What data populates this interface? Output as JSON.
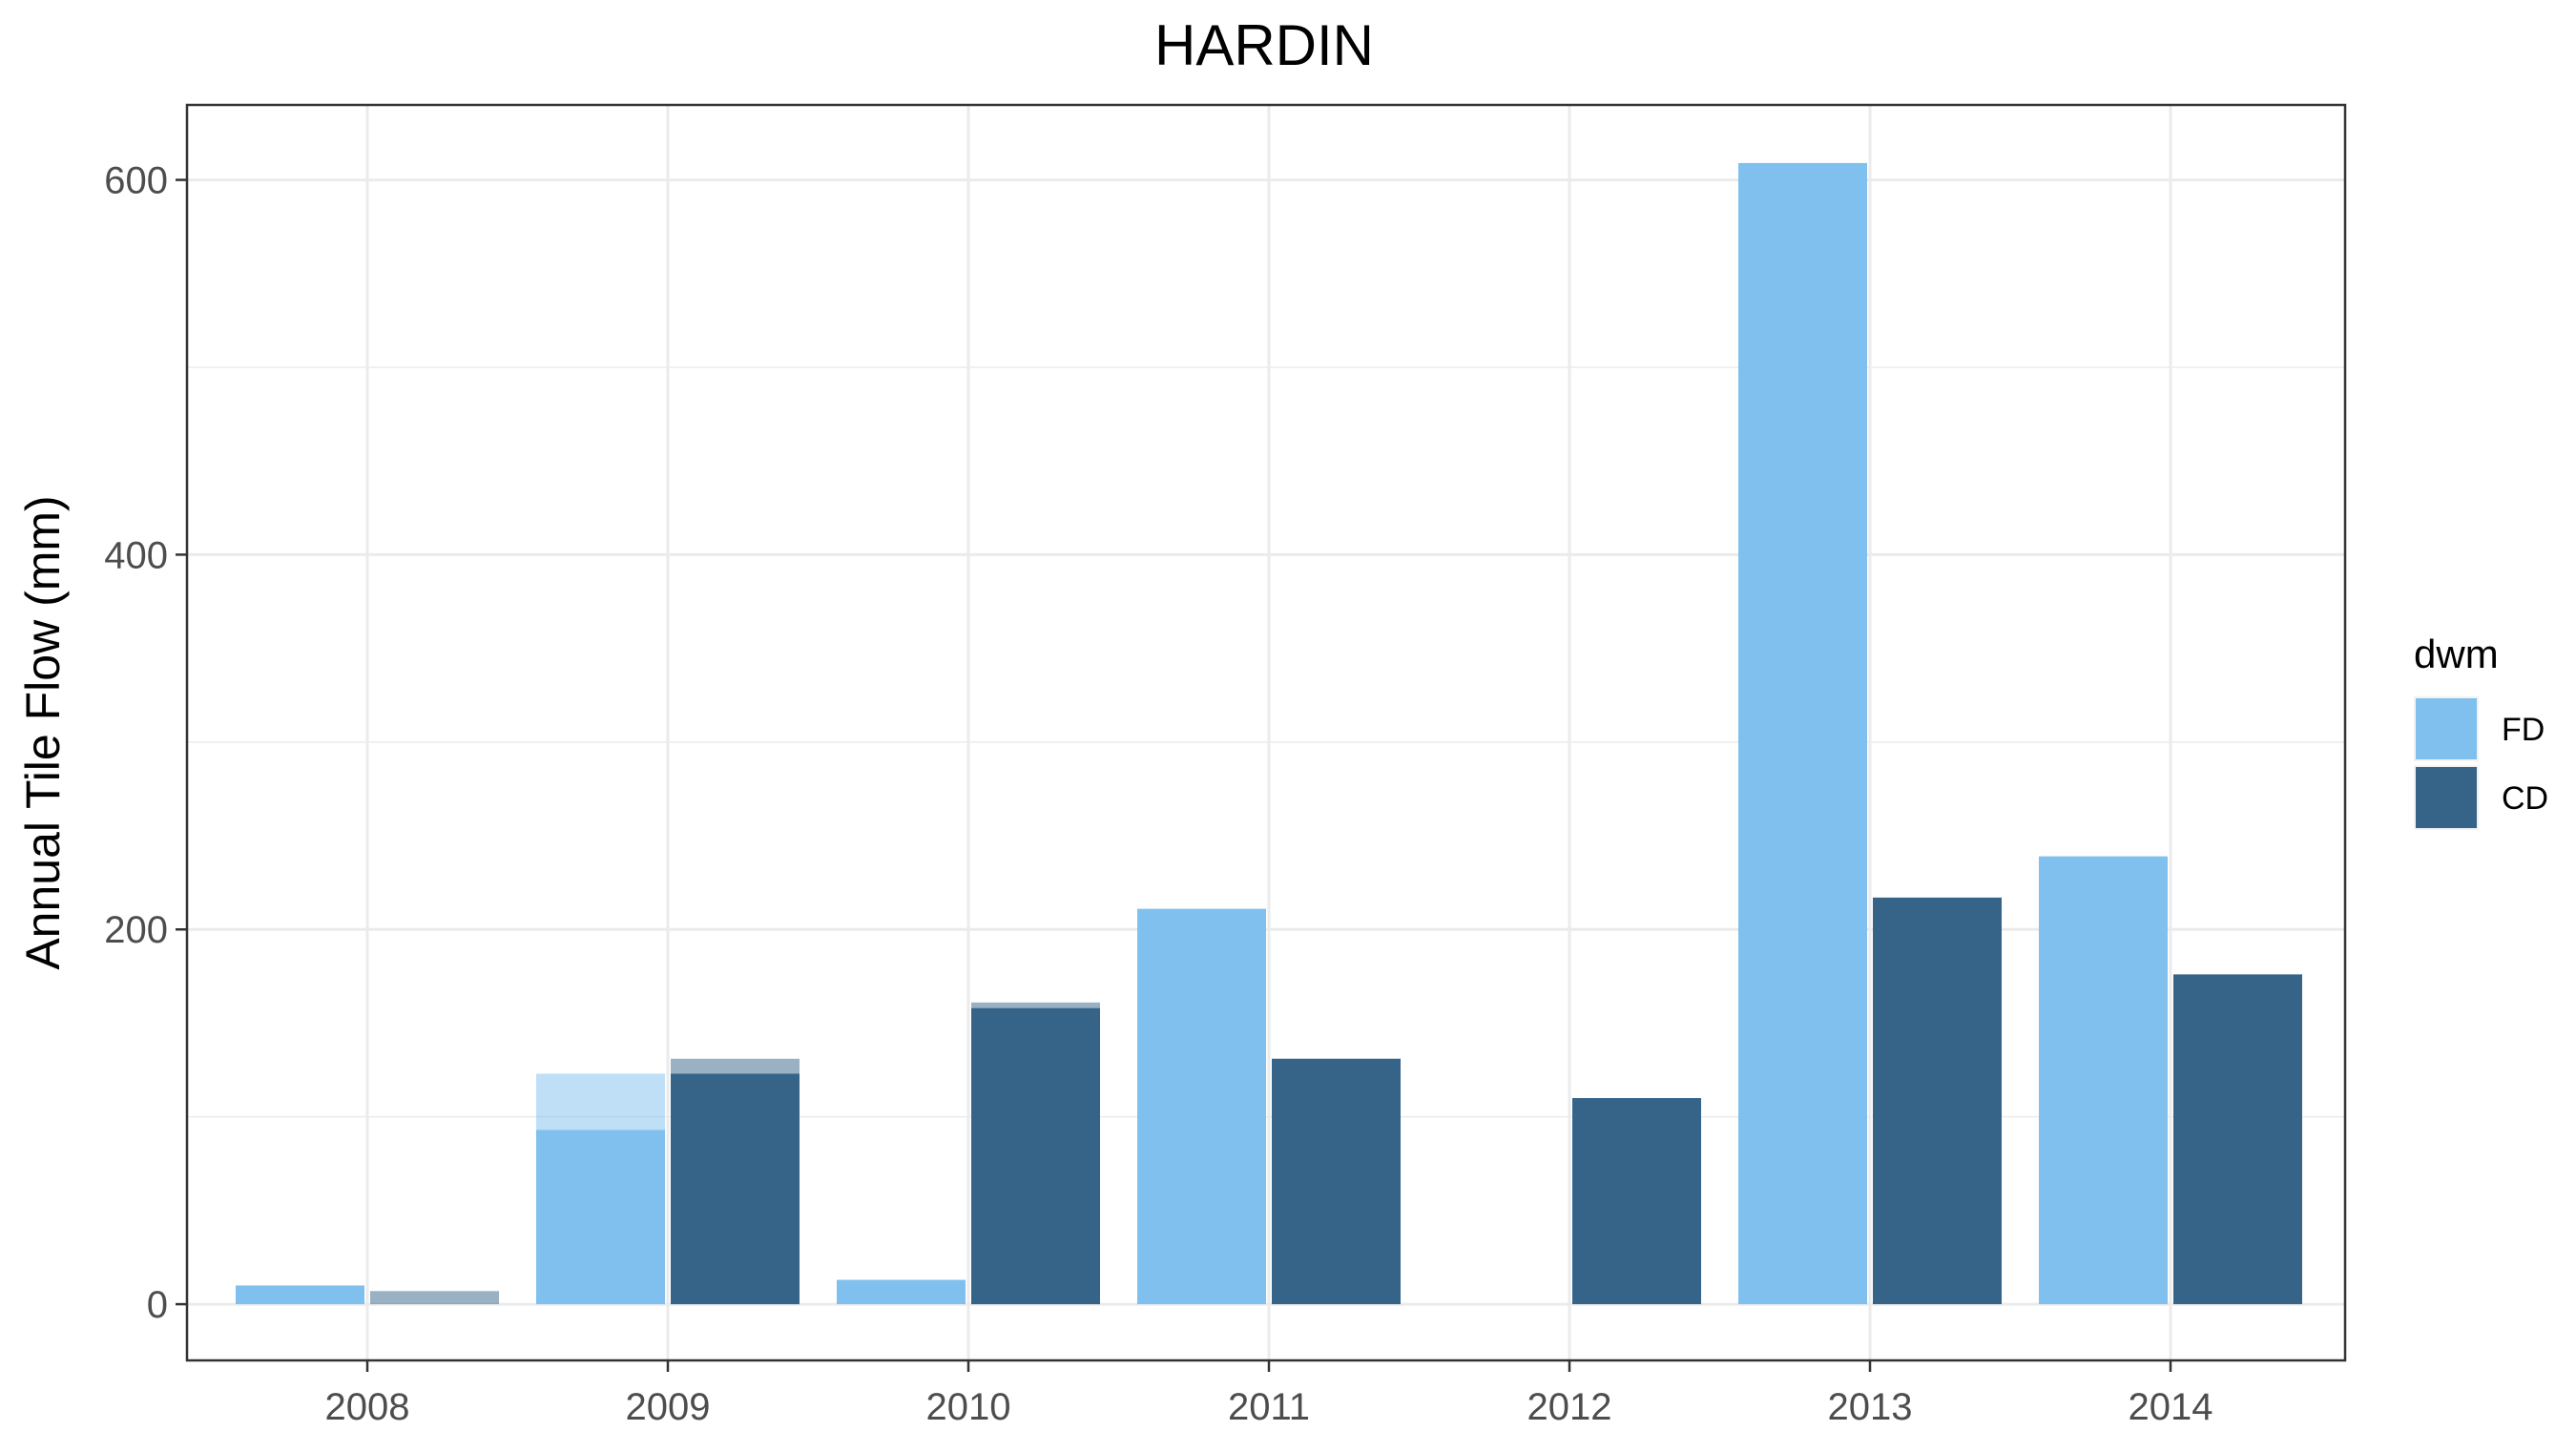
{
  "chart_data": {
    "type": "bar",
    "title": "HARDIN",
    "xlabel": "",
    "ylabel": "Annual Tile Flow (mm)",
    "categories": [
      "2008",
      "2009",
      "2010",
      "2011",
      "2012",
      "2013",
      "2014"
    ],
    "ylim": [
      -30,
      640
    ],
    "yticks": [
      0,
      200,
      400,
      600
    ],
    "grid": true,
    "legend": {
      "title": "dwm",
      "position": "right",
      "items": [
        {
          "label": "FD",
          "color": "#80C0EE"
        },
        {
          "label": "CD",
          "color": "#366489"
        }
      ]
    },
    "series": [
      {
        "name": "FD",
        "color": "#80C0EE",
        "values": [
          10,
          93,
          13,
          211,
          null,
          609,
          239
        ],
        "faded_values": [
          null,
          123,
          null,
          null,
          null,
          null,
          null
        ]
      },
      {
        "name": "CD",
        "color": "#366489",
        "values": [
          null,
          123,
          158,
          131,
          110,
          217,
          176
        ],
        "faded_values": [
          7,
          131,
          161,
          null,
          null,
          null,
          null
        ]
      }
    ]
  }
}
